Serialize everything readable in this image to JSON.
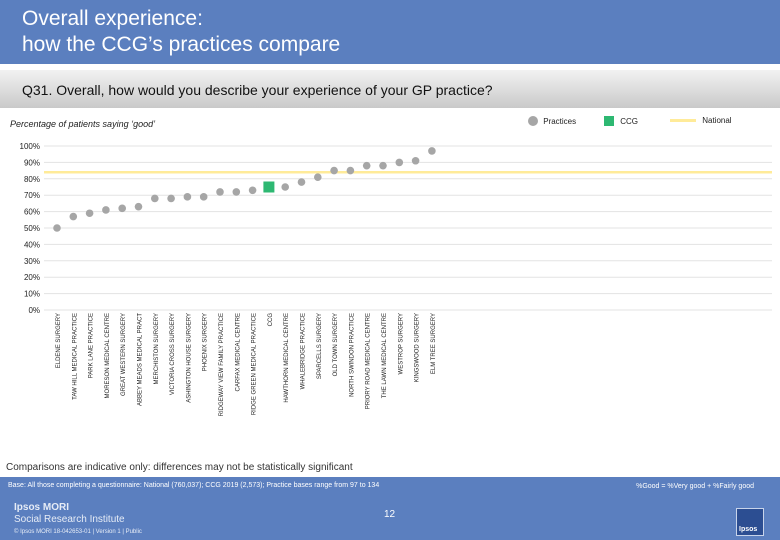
{
  "header": {
    "title_line1": "Overall experience:",
    "title_line2": "how the CCG’s practices compare",
    "question": "Q31. Overall, how would you describe your experience of your GP practice?"
  },
  "subtitle": "Percentage of patients saying ‘good’",
  "legend": {
    "practices": "Practices",
    "ccg": "CCG",
    "national": "National"
  },
  "colors": {
    "header": "#5b7fbf",
    "practice_dot": "#a6a6a6",
    "ccg_marker": "#2eb872",
    "national_line": "#ffeb99",
    "footer": "#5b7fbf"
  },
  "chart_data": {
    "type": "scatter",
    "title": "Percentage of patients saying ‘good’",
    "ylim": [
      0,
      100
    ],
    "yticks": [
      "0%",
      "10%",
      "20%",
      "30%",
      "40%",
      "50%",
      "60%",
      "70%",
      "80%",
      "90%",
      "100%"
    ],
    "national": 84,
    "categories": [
      "ELDENE SURGERY",
      "TAW HILL MEDICAL PRACTICE",
      "PARK LANE PRACTICE",
      "MORESON MEDICAL CENTRE",
      "GREAT WESTERN SURGERY",
      "ABBEY MEADS MEDICAL PRACT",
      "MERCHISTON SURGERY",
      "VICTORIA CROSS SURGERY",
      "ASHINGTON HOUSE SURGERY",
      "PHOENIX SURGERY",
      "RIDGEWAY VIEW FAMILY PRACTICE",
      "CARFAX MEDICAL CENTRE",
      "RIDGE GREEN MEDICAL PRACTICE",
      "CCG",
      "HAWTHORN MEDICAL CENTRE",
      "WHALEBRIDGE PRACTICE",
      "SPARCELLS SURGERY",
      "OLD TOWN SURGERY",
      "NORTH SWINDON PRACTICE",
      "PRIORY ROAD MEDICAL CENTRE",
      "THE LAWN MEDICAL CENTRE",
      "WESTROP SURGERY",
      "KINGSWOOD SURGERY",
      "ELM TREE SURGERY"
    ],
    "values": [
      50,
      57,
      59,
      61,
      62,
      63,
      68,
      68,
      69,
      69,
      72,
      72,
      73,
      75,
      75,
      78,
      81,
      85,
      85,
      88,
      88,
      90,
      91,
      97
    ],
    "ccg_index": 13
  },
  "footer": {
    "note": "Comparisons are indicative only: differences may not be statistically significant",
    "base": "Base: All those completing a questionnaire: National (760,037); CCG 2019 (2,573); Practice bases range from 97 to 134",
    "definition": "%Good = %Very good + %Fairly good",
    "brand_line1": "Ipsos MORI",
    "brand_line2": "Social Research Institute",
    "copyright": "© Ipsos MORI      18-042653-01 | Version 1 | Public",
    "page_number": "12",
    "logo_text": "Ipsos"
  }
}
